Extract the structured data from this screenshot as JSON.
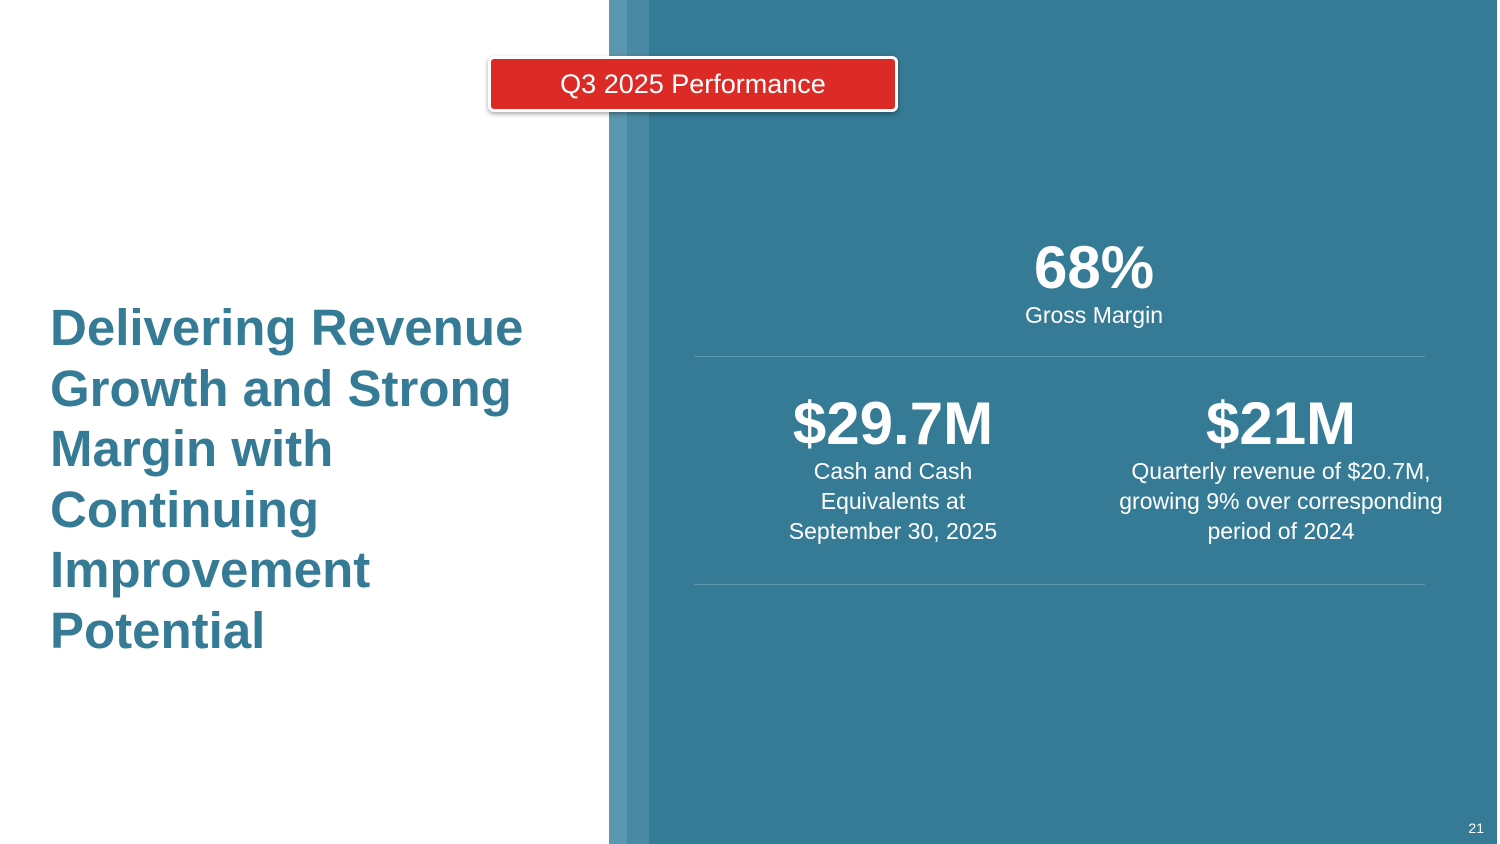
{
  "badge": "Q3 2025 Performance",
  "headline": [
    "Delivering Revenue",
    "Growth and Strong",
    "Margin with",
    "Continuing",
    "Improvement",
    "Potential"
  ],
  "metrics": [
    {
      "value": "68%",
      "label": [
        "Gross Margin"
      ]
    },
    {
      "value": "$29.7M",
      "label": [
        "Cash and Cash",
        "Equivalents at",
        "September 30, 2025"
      ]
    },
    {
      "value": "$21M",
      "label": [
        "Quarterly revenue of $20.7M,",
        "growing 9% over corresponding",
        "period of 2024"
      ]
    }
  ],
  "page_number": "21"
}
